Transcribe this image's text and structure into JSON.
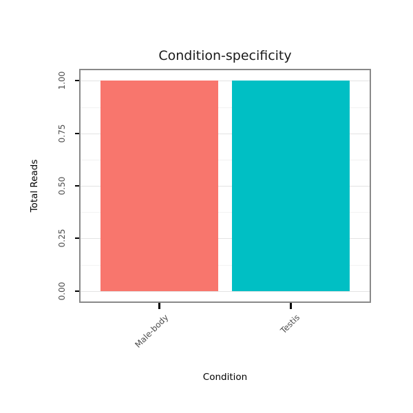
{
  "chart_data": {
    "type": "bar",
    "title": "Condition-specificity",
    "xlabel": "Condition",
    "ylabel": "Total Reads",
    "categories": [
      "Male-body",
      "Testis"
    ],
    "values": [
      1.0,
      1.0
    ],
    "bar_colors": [
      "#F8766D",
      "#00BFC4"
    ],
    "yticks": [
      0.0,
      0.25,
      0.5,
      0.75,
      1.0
    ],
    "ytick_labels": [
      "0.00",
      "0.25",
      "0.50",
      "0.75",
      "1.00"
    ],
    "ylim": [
      0,
      1
    ],
    "y_expansion": 0.05,
    "grid": "horizontal major + minor",
    "legend": "none",
    "panel_border_color": "#888888",
    "major_grid_color": "#e3e3e3",
    "minor_grid_color": "#f2f2f2",
    "tick_color": "#000000",
    "tick_label_color": "#4d4d4d"
  }
}
